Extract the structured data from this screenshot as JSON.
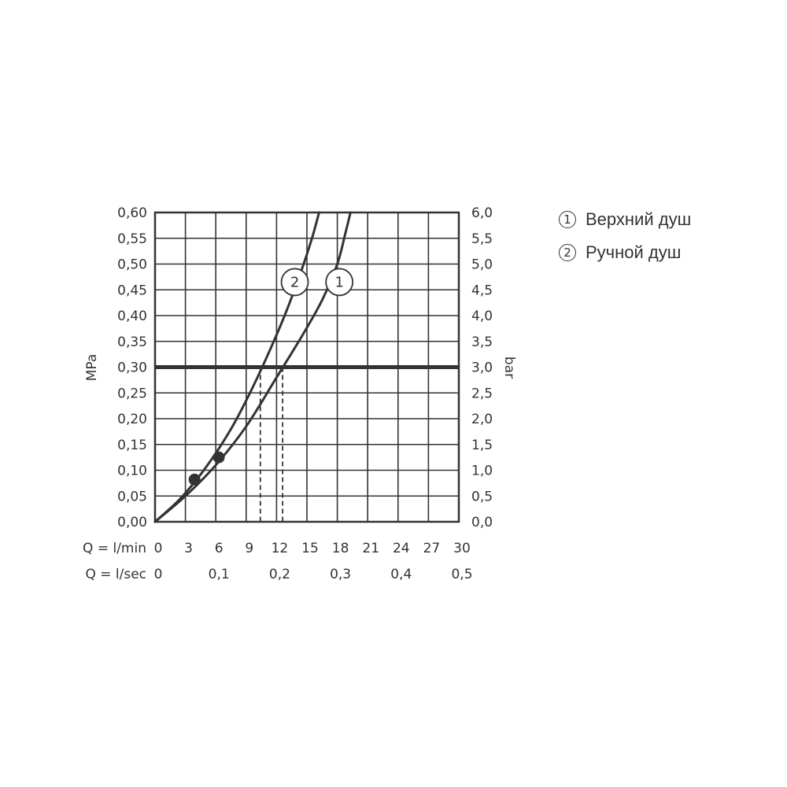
{
  "chart_data": {
    "type": "line",
    "xlabel_primary": "Q = l/min",
    "xlabel_secondary": "Q = l/sec",
    "ylabel_left": "MPa",
    "ylabel_right": "bar",
    "xlim": [
      0,
      30
    ],
    "ylim": [
      0,
      0.6
    ],
    "x_ticks": [
      "0",
      "3",
      "6",
      "9",
      "12",
      "15",
      "18",
      "21",
      "24",
      "27",
      "30"
    ],
    "x_ticks_sec": [
      {
        "v": 0,
        "label": "0"
      },
      {
        "v": 0.1,
        "label": "0,1"
      },
      {
        "v": 0.2,
        "label": "0,2"
      },
      {
        "v": 0.3,
        "label": "0,3"
      },
      {
        "v": 0.4,
        "label": "0,4"
      },
      {
        "v": 0.5,
        "label": "0,5"
      }
    ],
    "y_ticks_left": [
      "0,00",
      "0,05",
      "0,10",
      "0,15",
      "0,20",
      "0,25",
      "0,30",
      "0,35",
      "0,40",
      "0,45",
      "0,50",
      "0,55",
      "0,60"
    ],
    "y_ticks_right": [
      "0,0",
      "0,5",
      "1,0",
      "1,5",
      "2,0",
      "2,5",
      "3,0",
      "3,5",
      "4,0",
      "4,5",
      "5,0",
      "5,5",
      "6,0"
    ],
    "grid": true,
    "reference_line": {
      "y": 0.3
    },
    "series": [
      {
        "id": "1",
        "label_pos": {
          "x": 18.2,
          "y": 0.465
        },
        "dot": {
          "x": 6.3,
          "y": 0.125
        },
        "drop": {
          "x": 12.6,
          "y": 0.3
        },
        "points": [
          [
            0,
            0
          ],
          [
            3,
            0.05
          ],
          [
            6,
            0.11
          ],
          [
            9,
            0.185
          ],
          [
            12,
            0.28
          ],
          [
            14.5,
            0.36
          ],
          [
            16.5,
            0.43
          ],
          [
            18,
            0.5
          ],
          [
            18.8,
            0.56
          ],
          [
            19.3,
            0.6
          ]
        ]
      },
      {
        "id": "2",
        "label_pos": {
          "x": 13.8,
          "y": 0.465
        },
        "dot": {
          "x": 3.9,
          "y": 0.082
        },
        "drop": {
          "x": 10.4,
          "y": 0.3
        },
        "points": [
          [
            0,
            0
          ],
          [
            2.5,
            0.045
          ],
          [
            5,
            0.105
          ],
          [
            7.5,
            0.18
          ],
          [
            9.5,
            0.255
          ],
          [
            11.5,
            0.34
          ],
          [
            13,
            0.41
          ],
          [
            14.5,
            0.49
          ],
          [
            15.5,
            0.55
          ],
          [
            16.2,
            0.6
          ]
        ]
      }
    ]
  },
  "legend": [
    {
      "num": "1",
      "text": "Верхний душ"
    },
    {
      "num": "2",
      "text": "Ручной душ"
    }
  ]
}
